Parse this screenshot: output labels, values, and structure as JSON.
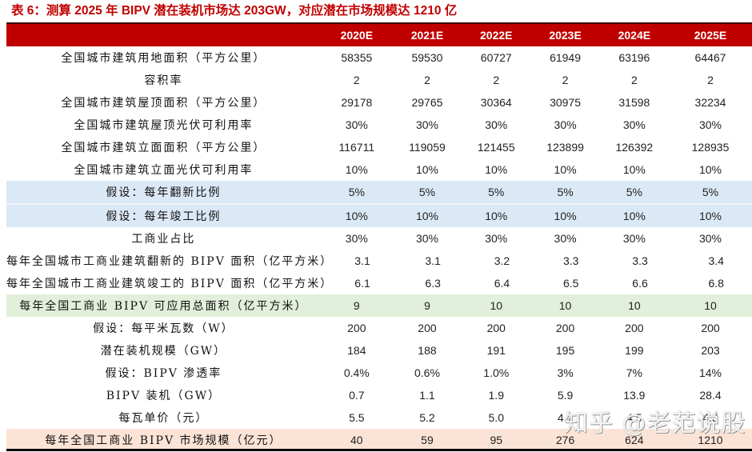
{
  "caption": "表 6：测算 2025 年 BIPV 潜在装机市场达 203GW，对应潜在市场规模达 1210 亿",
  "table": {
    "columns": [
      "2020E",
      "2021E",
      "2022E",
      "2023E",
      "2024E",
      "2025E"
    ],
    "rows": [
      {
        "label": "全国城市建筑用地面积（平方公里）",
        "values": [
          "58355",
          "59530",
          "60727",
          "61949",
          "63196",
          "64467"
        ],
        "highlight": "none"
      },
      {
        "label": "容积率",
        "values": [
          "2",
          "2",
          "2",
          "2",
          "2",
          "2"
        ],
        "highlight": "none"
      },
      {
        "label": "全国城市建筑屋顶面积（平方公里）",
        "values": [
          "29178",
          "29765",
          "30364",
          "30975",
          "31598",
          "32234"
        ],
        "highlight": "none"
      },
      {
        "label": "全国城市建筑屋顶光伏可利用率",
        "values": [
          "30%",
          "30%",
          "30%",
          "30%",
          "30%",
          "30%"
        ],
        "highlight": "none"
      },
      {
        "label": "全国城市建筑立面面积（平方公里）",
        "values": [
          "116711",
          "119059",
          "121455",
          "123899",
          "126392",
          "128935"
        ],
        "highlight": "none"
      },
      {
        "label": "全国城市建筑立面光伏可利用率",
        "values": [
          "10%",
          "10%",
          "10%",
          "10%",
          "10%",
          "10%"
        ],
        "highlight": "none"
      },
      {
        "label": "假设：每年翻新比例",
        "values": [
          "5%",
          "5%",
          "5%",
          "5%",
          "5%",
          "5%"
        ],
        "highlight": "blue"
      },
      {
        "label": "假设：每年竣工比例",
        "values": [
          "10%",
          "10%",
          "10%",
          "10%",
          "10%",
          "10%"
        ],
        "highlight": "blue"
      },
      {
        "label": "工商业占比",
        "values": [
          "30%",
          "30%",
          "30%",
          "30%",
          "30%",
          "30%"
        ],
        "highlight": "none"
      },
      {
        "label": "每年全国城市工商业建筑翻新的 BIPV 面积（亿平方米）",
        "values": [
          "3.1",
          "3.1",
          "3.2",
          "3.3",
          "3.3",
          "3.4"
        ],
        "highlight": "none"
      },
      {
        "label": "每年全国城市工商业建筑竣工的 BIPV 面积（亿平方米）",
        "values": [
          "6.1",
          "6.3",
          "6.4",
          "6.5",
          "6.6",
          "6.8"
        ],
        "highlight": "none"
      },
      {
        "label": "每年全国工商业 BIPV 可应用总面积（亿平方米）",
        "values": [
          "9",
          "9",
          "10",
          "10",
          "10",
          "10"
        ],
        "highlight": "green"
      },
      {
        "label": "假设：每平米瓦数（W）",
        "values": [
          "200",
          "200",
          "200",
          "200",
          "200",
          "200"
        ],
        "highlight": "none"
      },
      {
        "label": "潜在装机规模（GW）",
        "values": [
          "184",
          "188",
          "191",
          "195",
          "199",
          "203"
        ],
        "highlight": "none"
      },
      {
        "label": "假设：BIPV 渗透率",
        "values": [
          "0.4%",
          "0.6%",
          "1.0%",
          "3%",
          "7%",
          "14%"
        ],
        "highlight": "none"
      },
      {
        "label": "BIPV 装机（GW）",
        "values": [
          "0.7",
          "1.1",
          "1.9",
          "5.9",
          "13.9",
          "28.4"
        ],
        "highlight": "none"
      },
      {
        "label": "每瓦单价（元）",
        "values": [
          "5.5",
          "5.2",
          "5.0",
          "4.7",
          "4.5",
          "4.3"
        ],
        "highlight": "none"
      },
      {
        "label": "每年全国工商业 BIPV 市场规模（亿元）",
        "values": [
          "40",
          "59",
          "95",
          "276",
          "624",
          "1210"
        ],
        "highlight": "peach"
      }
    ]
  },
  "watermark": "知乎 @老范说股",
  "colors": {
    "header_bg": "#c00000",
    "caption": "#c00000",
    "blue_row": "#dbe8f5",
    "green_row": "#e2efda",
    "peach_row": "#fbe3d6"
  }
}
